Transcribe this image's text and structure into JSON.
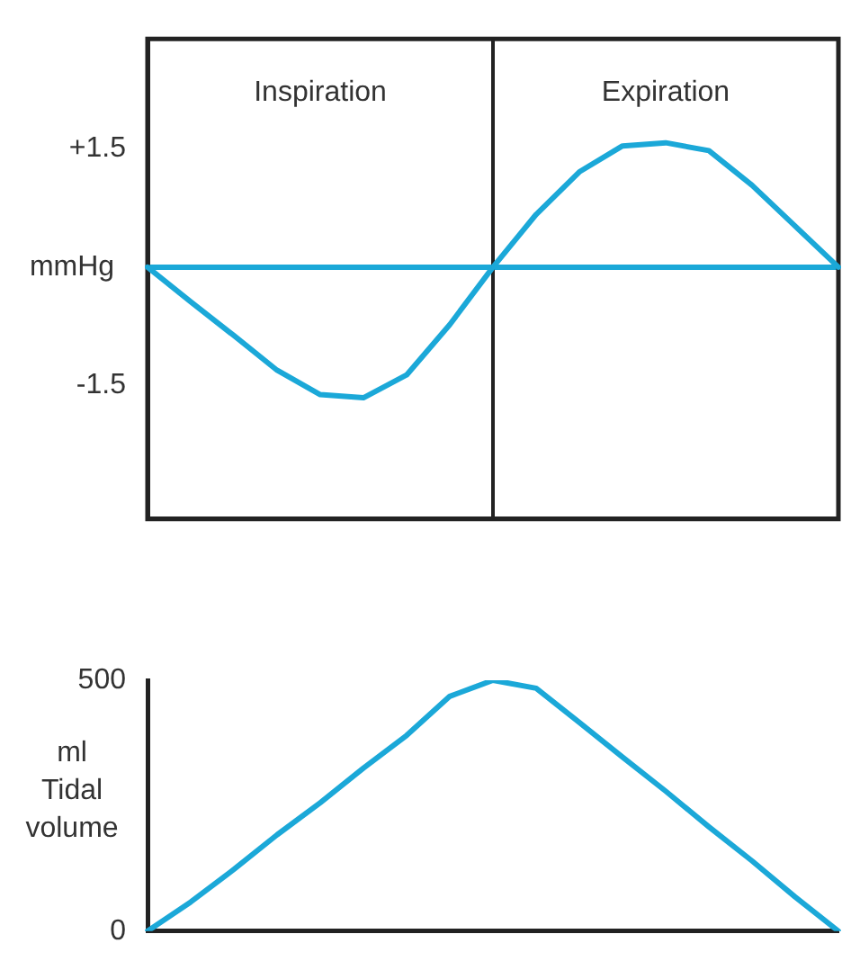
{
  "chart_data": [
    {
      "type": "line",
      "ylabel": "mmHg",
      "categories": [
        null,
        null,
        null,
        null,
        null,
        null,
        null,
        null,
        null,
        null,
        null,
        null,
        null,
        null,
        null,
        null,
        null
      ],
      "series": [
        {
          "color": "#1ba8d8",
          "values": [
            0,
            -0.44,
            -0.87,
            -1.31,
            -1.62,
            -1.66,
            -1.37,
            -0.73,
            0,
            0.67,
            1.21,
            1.54,
            1.58,
            1.48,
            1.04,
            0.52,
            0
          ]
        }
      ],
      "ylim": [
        -3.2,
        2.9
      ],
      "yticks": [
        {
          "value": 1.5,
          "label": "+1.5"
        },
        {
          "value": -1.5,
          "label": "-1.5"
        }
      ],
      "tick_labels": "y",
      "grid": false,
      "legend": false,
      "marker": "none",
      "line_style": "solid",
      "ref_lines": [
        {
          "axis": "y",
          "value": 0,
          "color": "#1ba8d8"
        }
      ],
      "annotations": [
        "Inspiration",
        "Expiration"
      ]
    },
    {
      "type": "line",
      "ylabel": "ml Tidal volume",
      "categories": [
        null,
        null,
        null,
        null,
        null,
        null,
        null,
        null,
        null,
        null,
        null,
        null,
        null,
        null,
        null,
        null,
        null
      ],
      "series": [
        {
          "color": "#1ba8d8",
          "values": [
            0,
            58,
            123,
            192,
            256,
            325,
            390,
            468,
            500,
            484,
            416,
            347,
            279,
            208,
            140,
            68,
            0
          ]
        }
      ],
      "ylim": [
        0,
        500
      ],
      "yticks": [
        0,
        500
      ],
      "tick_labels": "y",
      "grid": false,
      "legend": false,
      "marker": "none",
      "line_style": "solid"
    }
  ]
}
